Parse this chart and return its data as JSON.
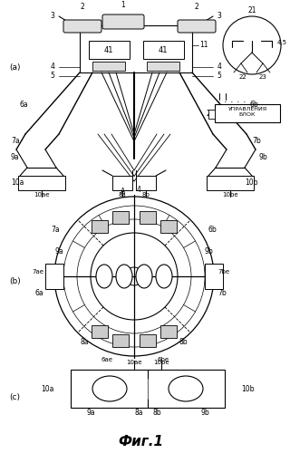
{
  "title": "Фиг.1",
  "background": "#ffffff"
}
